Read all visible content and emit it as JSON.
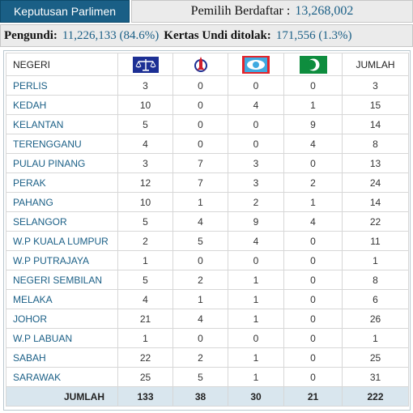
{
  "header": {
    "tab_label": "Keputusan Parlimen",
    "voters_label": "Pemilih Berdaftar :",
    "voters_value": "13,268,002"
  },
  "stats": {
    "turnout_label": "Pengundi:",
    "turnout_value": "11,226,133 (84.6%)",
    "rejected_label": "Kertas Undi ditolak:",
    "rejected_value": "171,556 (1.3%)"
  },
  "table": {
    "columns": {
      "state": "NEGERI",
      "party1_icon": "bn-scales-logo-icon",
      "party2_icon": "dap-rocket-logo-icon",
      "party3_icon": "pkr-eye-logo-icon",
      "party4_icon": "pas-moon-logo-icon",
      "total": "JUMLAH"
    },
    "rows": [
      {
        "state": "PERLIS",
        "p1": "3",
        "p2": "0",
        "p3": "0",
        "p4": "0",
        "total": "3"
      },
      {
        "state": "KEDAH",
        "p1": "10",
        "p2": "0",
        "p3": "4",
        "p4": "1",
        "total": "15"
      },
      {
        "state": "KELANTAN",
        "p1": "5",
        "p2": "0",
        "p3": "0",
        "p4": "9",
        "total": "14"
      },
      {
        "state": "TERENGGANU",
        "p1": "4",
        "p2": "0",
        "p3": "0",
        "p4": "4",
        "total": "8"
      },
      {
        "state": "PULAU PINANG",
        "p1": "3",
        "p2": "7",
        "p3": "3",
        "p4": "0",
        "total": "13"
      },
      {
        "state": "PERAK",
        "p1": "12",
        "p2": "7",
        "p3": "3",
        "p4": "2",
        "total": "24"
      },
      {
        "state": "PAHANG",
        "p1": "10",
        "p2": "1",
        "p3": "2",
        "p4": "1",
        "total": "14"
      },
      {
        "state": "SELANGOR",
        "p1": "5",
        "p2": "4",
        "p3": "9",
        "p4": "4",
        "total": "22"
      },
      {
        "state": "W.P KUALA LUMPUR",
        "p1": "2",
        "p2": "5",
        "p3": "4",
        "p4": "0",
        "total": "11"
      },
      {
        "state": "W.P PUTRAJAYA",
        "p1": "1",
        "p2": "0",
        "p3": "0",
        "p4": "0",
        "total": "1"
      },
      {
        "state": "NEGERI SEMBILAN",
        "p1": "5",
        "p2": "2",
        "p3": "1",
        "p4": "0",
        "total": "8"
      },
      {
        "state": "MELAKA",
        "p1": "4",
        "p2": "1",
        "p3": "1",
        "p4": "0",
        "total": "6"
      },
      {
        "state": "JOHOR",
        "p1": "21",
        "p2": "4",
        "p3": "1",
        "p4": "0",
        "total": "26"
      },
      {
        "state": "W.P LABUAN",
        "p1": "1",
        "p2": "0",
        "p3": "0",
        "p4": "0",
        "total": "1"
      },
      {
        "state": "SABAH",
        "p1": "22",
        "p2": "2",
        "p3": "1",
        "p4": "0",
        "total": "25"
      },
      {
        "state": "SARAWAK",
        "p1": "25",
        "p2": "5",
        "p3": "1",
        "p4": "0",
        "total": "31"
      }
    ],
    "totals": {
      "label": "JUMLAH",
      "p1": "133",
      "p2": "38",
      "p3": "30",
      "p4": "21",
      "total": "222"
    }
  },
  "colors": {
    "accent": "#1a5f86",
    "footer_bg": "#d9e6ee",
    "bn_blue": "#1c2f94",
    "dap_red": "#d21f2b",
    "pkr_cyan": "#3fa9e0",
    "pkr_red": "#e3242b",
    "pas_green": "#0e8d3e"
  }
}
